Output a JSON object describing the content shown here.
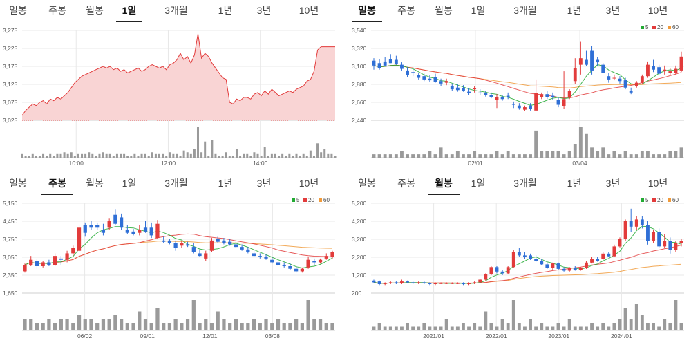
{
  "tab_labels": [
    "일봉",
    "주봉",
    "월봉",
    "1일",
    "3개월",
    "1년",
    "3년",
    "10년"
  ],
  "legend": [
    {
      "label": "5",
      "color": "#22aa33"
    },
    {
      "label": "20",
      "color": "#e23b3b"
    },
    {
      "label": "60",
      "color": "#f09a3a"
    }
  ],
  "colors": {
    "up": "#e23b3b",
    "down": "#2f6fd6",
    "volume": "#9a9a9a",
    "area_fill": "#f9d4d4",
    "area_line": "#e23b3b",
    "grid": "#e8e8e8"
  },
  "panels": [
    {
      "active_tab": 3
    },
    {
      "active_tab": 0
    },
    {
      "active_tab": 1
    },
    {
      "active_tab": 2
    }
  ],
  "chart_data": [
    {
      "type": "area",
      "y_ticks": [
        "3,275",
        "3,225",
        "3,175",
        "3,125",
        "3,075",
        "3,025"
      ],
      "x_ticks": [
        "10:00",
        "12:00",
        "14:00"
      ],
      "ylim": [
        3025,
        3300
      ],
      "prices": [
        3040,
        3055,
        3065,
        3075,
        3070,
        3080,
        3085,
        3075,
        3090,
        3085,
        3095,
        3090,
        3100,
        3110,
        3125,
        3140,
        3150,
        3160,
        3165,
        3170,
        3175,
        3180,
        3185,
        3190,
        3185,
        3190,
        3180,
        3185,
        3175,
        3180,
        3170,
        3175,
        3180,
        3185,
        3175,
        3180,
        3190,
        3195,
        3190,
        3185,
        3190,
        3180,
        3195,
        3200,
        3210,
        3230,
        3210,
        3220,
        3200,
        3225,
        3290,
        3215,
        3230,
        3220,
        3200,
        3185,
        3170,
        3155,
        3150,
        3080,
        3075,
        3090,
        3085,
        3095,
        3095,
        3090,
        3105,
        3110,
        3100,
        3115,
        3105,
        3120,
        3110,
        3100,
        3105,
        3110,
        3115,
        3110,
        3120,
        3125,
        3130,
        3145,
        3150,
        3175,
        3240,
        3250,
        3250,
        3250,
        3250,
        3250
      ],
      "volumes": [
        2,
        1,
        1,
        2,
        1,
        1,
        2,
        1,
        2,
        1,
        2,
        2,
        3,
        2,
        3,
        1,
        2,
        2,
        2,
        3,
        2,
        1,
        2,
        3,
        2,
        2,
        1,
        2,
        2,
        2,
        1,
        1,
        2,
        1,
        2,
        2,
        1,
        3,
        2,
        2,
        2,
        1,
        3,
        2,
        2,
        1,
        4,
        3,
        2,
        5,
        17,
        3,
        9,
        1,
        10,
        2,
        1,
        1,
        3,
        1,
        1,
        5,
        1,
        2,
        2,
        1,
        3,
        2,
        1,
        6,
        1,
        2,
        2,
        1,
        2,
        1,
        2,
        1,
        2,
        1,
        2,
        1,
        4,
        1,
        8,
        3,
        5,
        2,
        2,
        1
      ]
    },
    {
      "type": "candlestick",
      "y_ticks": [
        "3,540",
        "3,320",
        "3,100",
        "2,880",
        "2,660",
        "2,440"
      ],
      "x_ticks": [
        "02/01",
        "03/04"
      ],
      "ylim": [
        2440,
        3540
      ],
      "ohlc": [
        [
          3170,
          3200,
          3060,
          3110
        ],
        [
          3140,
          3190,
          3060,
          3080
        ],
        [
          3160,
          3210,
          3100,
          3110
        ],
        [
          3190,
          3250,
          3140,
          3140
        ],
        [
          3180,
          3230,
          3120,
          3130
        ],
        [
          3120,
          3150,
          3050,
          3070
        ],
        [
          3050,
          3090,
          2970,
          2990
        ],
        [
          3030,
          3080,
          2980,
          3020
        ],
        [
          2990,
          3020,
          2940,
          2960
        ],
        [
          2980,
          3010,
          2920,
          2940
        ],
        [
          2950,
          2990,
          2910,
          2930
        ],
        [
          2970,
          3010,
          2900,
          2910
        ],
        [
          2920,
          2950,
          2860,
          2890
        ],
        [
          2900,
          2950,
          2870,
          2920
        ],
        [
          2860,
          2890,
          2800,
          2820
        ],
        [
          2840,
          2880,
          2790,
          2810
        ],
        [
          2830,
          2870,
          2790,
          2800
        ],
        [
          2790,
          2830,
          2750,
          2770
        ],
        [
          2820,
          2860,
          2780,
          2830
        ],
        [
          2780,
          2820,
          2750,
          2770
        ],
        [
          2770,
          2800,
          2730,
          2750
        ],
        [
          2750,
          2780,
          2710,
          2720
        ],
        [
          2690,
          2760,
          2590,
          2720
        ],
        [
          2720,
          2750,
          2680,
          2700
        ],
        [
          2740,
          2780,
          2700,
          2720
        ],
        [
          2640,
          2670,
          2590,
          2630
        ],
        [
          2620,
          2650,
          2570,
          2590
        ],
        [
          2570,
          2620,
          2550,
          2600
        ],
        [
          2620,
          2650,
          2560,
          2580
        ],
        [
          2560,
          2940,
          2550,
          2770
        ],
        [
          2720,
          2780,
          2700,
          2760
        ],
        [
          2760,
          2800,
          2700,
          2720
        ],
        [
          2740,
          2780,
          2690,
          2720
        ],
        [
          2690,
          2720,
          2600,
          2630
        ],
        [
          2610,
          3040,
          2580,
          2700
        ],
        [
          2720,
          2820,
          2700,
          2800
        ],
        [
          2920,
          3200,
          2880,
          3080
        ],
        [
          3120,
          3400,
          3000,
          3200
        ],
        [
          3180,
          3290,
          3100,
          3120
        ],
        [
          3290,
          3350,
          3000,
          3050
        ],
        [
          3180,
          3210,
          3100,
          3150
        ],
        [
          3120,
          3140,
          3020,
          3020
        ],
        [
          2980,
          3020,
          2900,
          2940
        ],
        [
          2960,
          3000,
          2930,
          2960
        ],
        [
          2950,
          2980,
          2890,
          2920
        ],
        [
          2930,
          2960,
          2820,
          2840
        ],
        [
          2800,
          2840,
          2760,
          2780
        ],
        [
          2860,
          2920,
          2840,
          2900
        ],
        [
          2900,
          3000,
          2880,
          2980
        ],
        [
          2980,
          3160,
          2960,
          3120
        ],
        [
          3100,
          3180,
          3030,
          3060
        ],
        [
          3090,
          3120,
          2990,
          3010
        ],
        [
          3040,
          3110,
          3000,
          3060
        ],
        [
          3020,
          3080,
          2990,
          3040
        ],
        [
          3020,
          3110,
          3000,
          3070
        ],
        [
          3050,
          3280,
          3030,
          3220
        ]
      ],
      "volumes": [
        1,
        1,
        1,
        1,
        1,
        2,
        1,
        1,
        1,
        1,
        2,
        1,
        3,
        1,
        1,
        2,
        1,
        1,
        2,
        1,
        1,
        1,
        2,
        1,
        2,
        1,
        1,
        1,
        1,
        8,
        2,
        2,
        2,
        2,
        1,
        2,
        4,
        9,
        7,
        3,
        2,
        3,
        1,
        2,
        1,
        2,
        1,
        1,
        2,
        2,
        1,
        1,
        1,
        2,
        2,
        3
      ]
    },
    {
      "type": "candlestick",
      "y_ticks": [
        "5,150",
        "4,450",
        "3,750",
        "3,050",
        "2,350",
        "1,650"
      ],
      "x_ticks": [
        "06/02",
        "09/01",
        "12/01",
        "03/08"
      ],
      "ylim": [
        1650,
        5150
      ],
      "ohlc": [
        [
          2500,
          2800,
          2450,
          2750
        ],
        [
          2750,
          3100,
          2700,
          2950
        ],
        [
          2900,
          3000,
          2600,
          2700
        ],
        [
          2700,
          2900,
          2650,
          2850
        ],
        [
          2850,
          2950,
          2700,
          2750
        ],
        [
          2750,
          3200,
          2700,
          3100
        ],
        [
          3000,
          3100,
          2750,
          2950
        ],
        [
          2950,
          3300,
          2850,
          3200
        ],
        [
          3200,
          3500,
          3100,
          3400
        ],
        [
          3300,
          4300,
          3250,
          4200
        ],
        [
          4300,
          4400,
          3850,
          4000
        ],
        [
          4300,
          4450,
          4100,
          4200
        ],
        [
          4300,
          4400,
          4100,
          4200
        ],
        [
          4100,
          4350,
          3900,
          4000
        ],
        [
          4200,
          4550,
          4100,
          4450
        ],
        [
          4700,
          4900,
          4300,
          4350
        ],
        [
          4600,
          4750,
          4100,
          4200
        ],
        [
          4100,
          4300,
          3950,
          4000
        ],
        [
          4050,
          4150,
          3900,
          3950
        ],
        [
          4000,
          4300,
          3900,
          4100
        ],
        [
          4200,
          4450,
          4000,
          4050
        ],
        [
          4200,
          4400,
          3800,
          3900
        ],
        [
          3800,
          4500,
          3750,
          4350
        ],
        [
          3700,
          3850,
          3600,
          3650
        ],
        [
          3700,
          3750,
          3550,
          3600
        ],
        [
          3600,
          3700,
          3300,
          3400
        ],
        [
          3500,
          3700,
          3400,
          3600
        ],
        [
          3550,
          3650,
          3450,
          3500
        ],
        [
          3450,
          3600,
          3200,
          3250
        ],
        [
          3200,
          3350,
          3050,
          3100
        ],
        [
          3000,
          3300,
          2900,
          3200
        ],
        [
          3300,
          3800,
          3250,
          3700
        ],
        [
          3750,
          3850,
          3600,
          3650
        ],
        [
          3700,
          3800,
          3550,
          3600
        ],
        [
          3650,
          3750,
          3500,
          3550
        ],
        [
          3550,
          3650,
          3400,
          3450
        ],
        [
          3450,
          3550,
          3300,
          3350
        ],
        [
          3350,
          3450,
          3200,
          3250
        ],
        [
          3200,
          3350,
          3050,
          3100
        ],
        [
          3100,
          3200,
          3000,
          3050
        ],
        [
          3050,
          3150,
          2950,
          3000
        ],
        [
          2950,
          3050,
          2800,
          2850
        ],
        [
          2850,
          2950,
          2700,
          2750
        ],
        [
          2750,
          2850,
          2650,
          2700
        ],
        [
          2700,
          2800,
          2550,
          2600
        ],
        [
          2600,
          2700,
          2450,
          2500
        ],
        [
          2500,
          2650,
          2450,
          2600
        ],
        [
          2650,
          3050,
          2600,
          2950
        ],
        [
          2900,
          3000,
          2750,
          2850
        ],
        [
          2850,
          3000,
          2800,
          2950
        ],
        [
          3000,
          3200,
          2950,
          3100
        ],
        [
          3050,
          3300,
          3000,
          3250
        ]
      ],
      "volumes": [
        3,
        3,
        2,
        2,
        3,
        2,
        3,
        3,
        2,
        4,
        3,
        3,
        2,
        3,
        3,
        4,
        3,
        2,
        2,
        5,
        3,
        2,
        6,
        2,
        2,
        3,
        2,
        3,
        8,
        2,
        3,
        2,
        5,
        3,
        2,
        3,
        2,
        2,
        3,
        2,
        3,
        2,
        3,
        2,
        2,
        3,
        2,
        8,
        3,
        3,
        2,
        2
      ]
    },
    {
      "type": "candlestick",
      "y_ticks": [
        "5,200",
        "4,200",
        "3,200",
        "2,200",
        "1,200",
        "200"
      ],
      "x_ticks": [
        "2021/01",
        "2022/01",
        "2023/01",
        "2024/01"
      ],
      "ylim": [
        200,
        5200
      ],
      "ohlc": [
        [
          900,
          950,
          750,
          800
        ],
        [
          850,
          900,
          650,
          700
        ],
        [
          700,
          800,
          650,
          750
        ],
        [
          750,
          850,
          700,
          800
        ],
        [
          800,
          850,
          700,
          750
        ],
        [
          750,
          950,
          700,
          850
        ],
        [
          850,
          900,
          750,
          800
        ],
        [
          800,
          850,
          700,
          750
        ],
        [
          750,
          850,
          700,
          800
        ],
        [
          800,
          850,
          700,
          750
        ],
        [
          750,
          800,
          650,
          700
        ],
        [
          700,
          800,
          650,
          750
        ],
        [
          750,
          800,
          700,
          750
        ],
        [
          750,
          800,
          700,
          750
        ],
        [
          750,
          800,
          700,
          750
        ],
        [
          750,
          800,
          700,
          750
        ],
        [
          750,
          800,
          650,
          700
        ],
        [
          700,
          800,
          650,
          750
        ],
        [
          750,
          850,
          700,
          800
        ],
        [
          800,
          1000,
          750,
          950
        ],
        [
          950,
          1300,
          900,
          1250
        ],
        [
          1250,
          1700,
          1200,
          1650
        ],
        [
          1650,
          1700,
          1300,
          1400
        ],
        [
          1400,
          1500,
          1200,
          1300
        ],
        [
          1300,
          1700,
          1250,
          1650
        ],
        [
          1650,
          2600,
          1600,
          2500
        ],
        [
          2500,
          2700,
          2200,
          2300
        ],
        [
          2300,
          2500,
          2100,
          2200
        ],
        [
          2300,
          2400,
          2050,
          2100
        ],
        [
          2100,
          2300,
          1950,
          2000
        ],
        [
          2000,
          2100,
          1750,
          1800
        ],
        [
          1800,
          1850,
          1550,
          1600
        ],
        [
          1600,
          1900,
          1500,
          1850
        ],
        [
          1850,
          1900,
          1500,
          1550
        ],
        [
          1550,
          1650,
          1400,
          1450
        ],
        [
          1450,
          1650,
          1400,
          1600
        ],
        [
          1600,
          1700,
          1450,
          1500
        ],
        [
          1500,
          1650,
          1450,
          1600
        ],
        [
          1600,
          2000,
          1550,
          1900
        ],
        [
          1900,
          2200,
          1850,
          2100
        ],
        [
          2100,
          2200,
          1950,
          2000
        ],
        [
          2100,
          2500,
          2050,
          2400
        ],
        [
          2400,
          2500,
          2200,
          2250
        ],
        [
          2250,
          2900,
          2200,
          2800
        ],
        [
          2800,
          3300,
          2750,
          3200
        ],
        [
          3200,
          4300,
          3100,
          4200
        ],
        [
          4200,
          4900,
          3600,
          3900
        ],
        [
          3900,
          4500,
          3700,
          4300
        ],
        [
          4300,
          4500,
          3800,
          4000
        ],
        [
          4000,
          4200,
          2900,
          3100
        ],
        [
          3100,
          3700,
          3000,
          3600
        ],
        [
          3600,
          3800,
          2700,
          2800
        ],
        [
          2800,
          3500,
          2700,
          3100
        ],
        [
          3100,
          3300,
          2400,
          2600
        ],
        [
          2600,
          3100,
          2500,
          3000
        ],
        [
          3000,
          3200,
          2800,
          3100
        ]
      ],
      "volumes": [
        1,
        2,
        1,
        1,
        1,
        1,
        2,
        1,
        1,
        2,
        1,
        1,
        1,
        3,
        1,
        1,
        2,
        1,
        2,
        1,
        5,
        2,
        1,
        3,
        2,
        8,
        2,
        1,
        3,
        1,
        2,
        1,
        1,
        2,
        1,
        3,
        1,
        1,
        1,
        2,
        1,
        2,
        1,
        2,
        3,
        6,
        3,
        7,
        4,
        2,
        2,
        1,
        3,
        2,
        8,
        2
      ]
    }
  ]
}
